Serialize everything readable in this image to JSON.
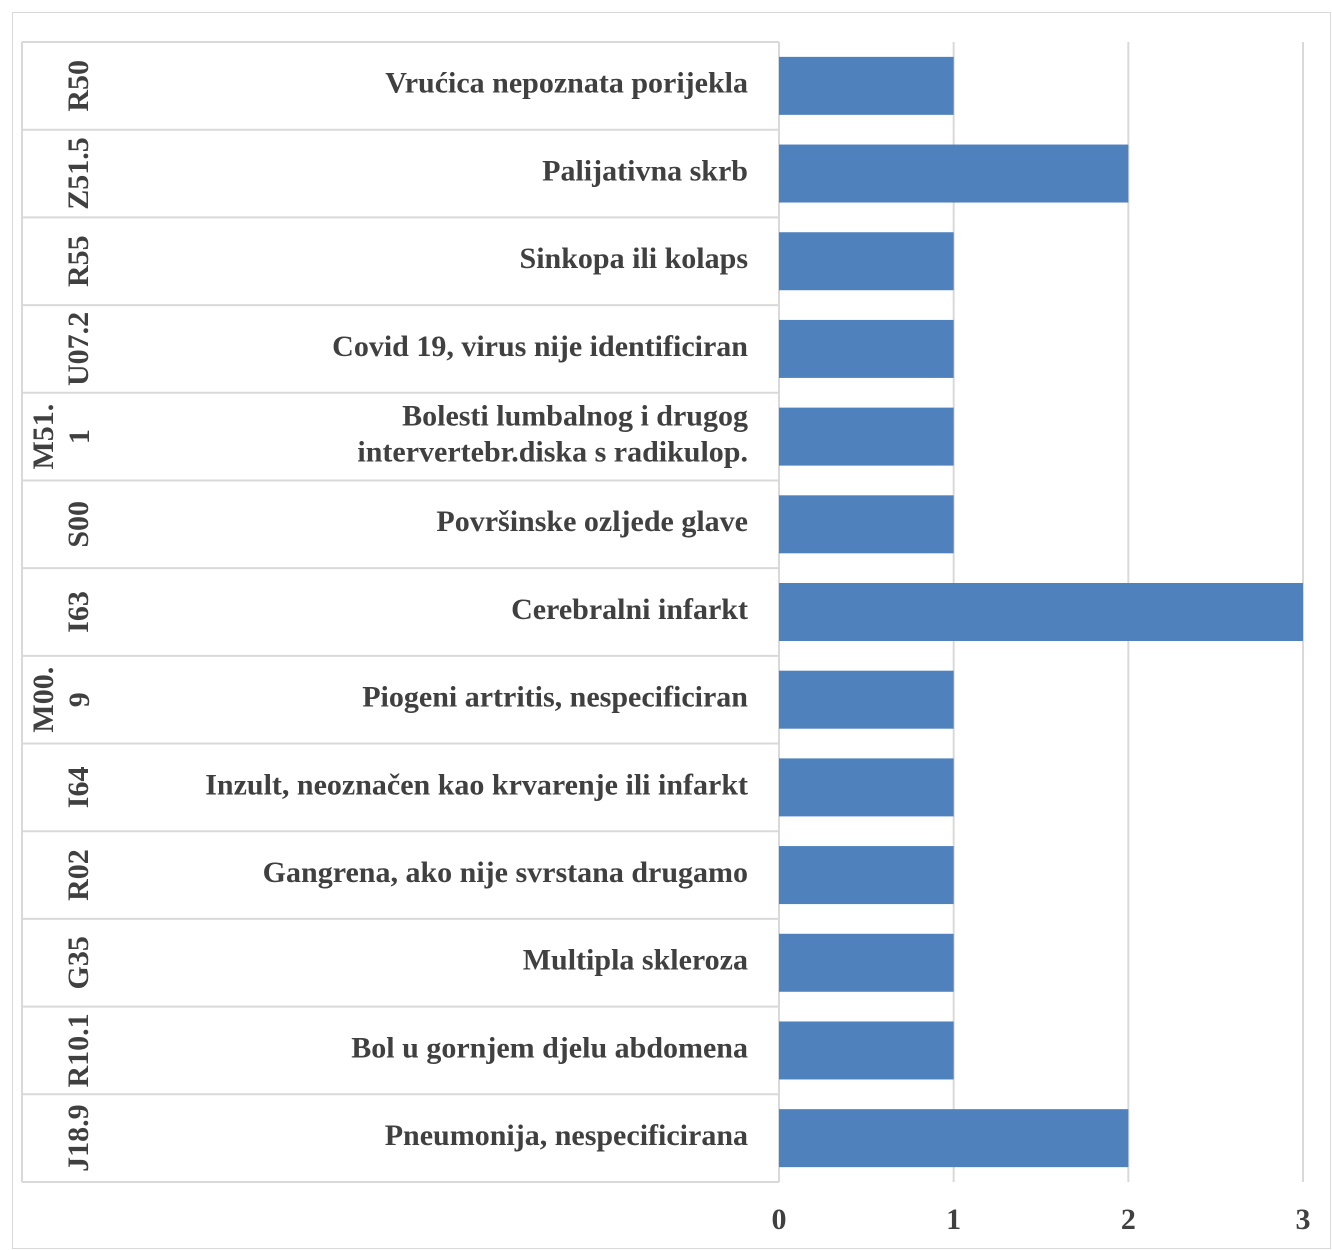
{
  "chart_data": {
    "type": "bar",
    "orientation": "horizontal",
    "codes": [
      "R50",
      "Z51.5",
      "R55",
      "U07.2",
      [
        "M51.",
        "1"
      ],
      "S00",
      "I63",
      [
        "M00.",
        "9"
      ],
      "I64",
      "R02",
      "G35",
      "R10.1",
      "J18.9"
    ],
    "categories": [
      "Vrućica nepoznata porijekla",
      "Palijativna skrb",
      "Sinkopa ili kolaps",
      "Covid 19, virus nije identificiran",
      [
        "Bolesti lumbalnog i drugog",
        "intervertebr.diska s radikulop."
      ],
      "Površinske ozljede glave",
      "Cerebralni infarkt",
      "Piogeni artritis, nespecificiran",
      "Inzult, neoznačen kao krvarenje ili infarkt",
      "Gangrena, ako nije svrstana drugamo",
      "Multipla skleroza",
      "Bol u gornjem djelu abdomena",
      "Pneumonija, nespecificirana"
    ],
    "values": [
      1,
      2,
      1,
      1,
      1,
      1,
      3,
      1,
      1,
      1,
      1,
      1,
      2
    ],
    "color": "#4f81bd",
    "xlim": [
      0,
      3
    ],
    "xticks": [
      0,
      1,
      2,
      3
    ],
    "grid": true
  }
}
